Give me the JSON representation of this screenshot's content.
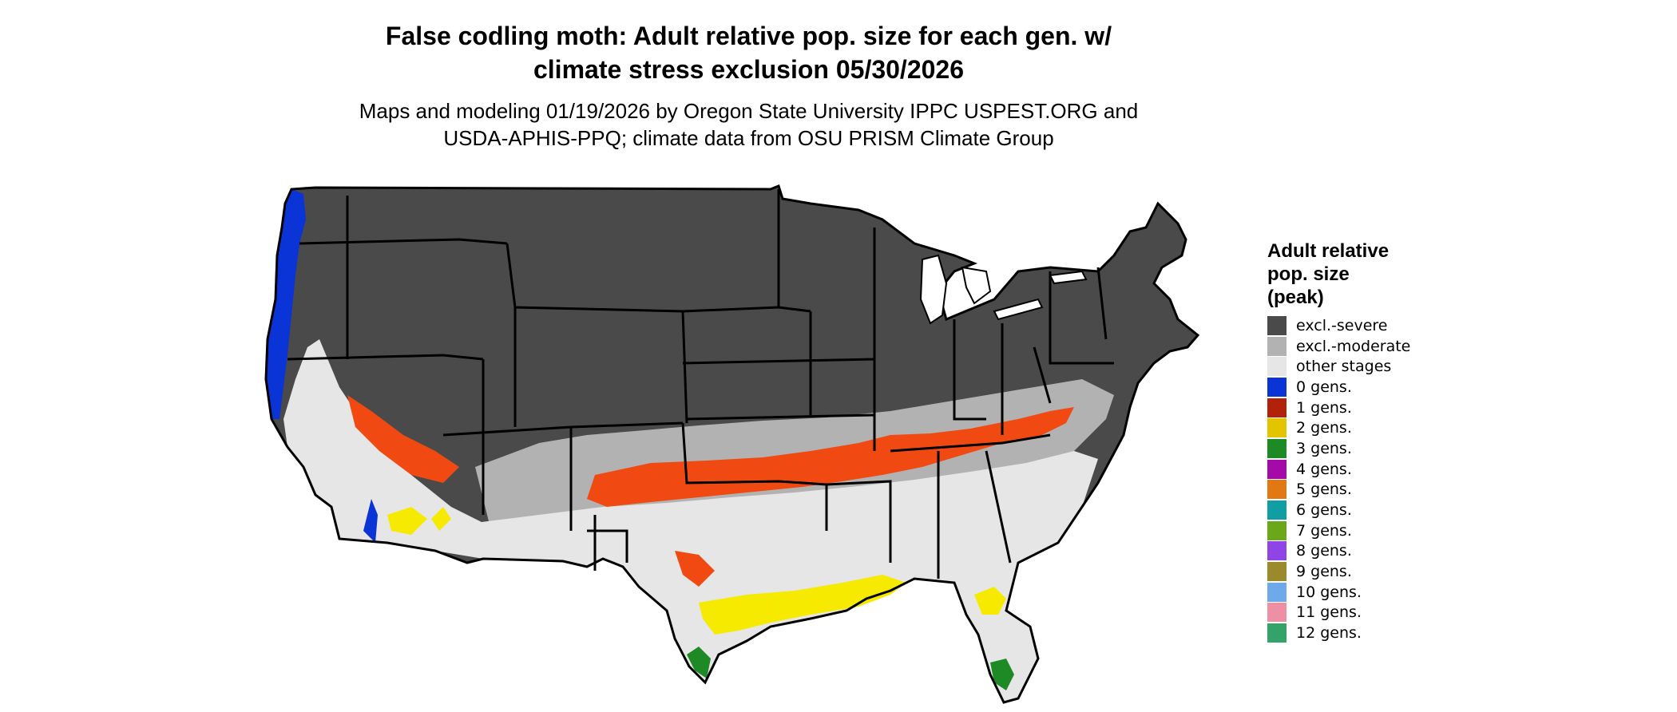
{
  "title_line1": "False codling moth: Adult relative pop. size for each gen. w/",
  "title_line2": "climate stress exclusion 05/30/2026",
  "subtitle_line1": "Maps and modeling 01/19/2026 by Oregon State University IPPC USPEST.ORG and",
  "subtitle_line2": "USDA-APHIS-PPQ; climate data from OSU PRISM Climate Group",
  "legend": {
    "title_line1": "Adult relative",
    "title_line2": "pop. size",
    "title_line3": "(peak)",
    "items": [
      {
        "label": "excl.-severe",
        "color": "#4a4a4a"
      },
      {
        "label": "excl.-moderate",
        "color": "#b2b2b2"
      },
      {
        "label": "other stages",
        "color": "#e6e6e6"
      },
      {
        "label": "0 gens.",
        "color": "#0a34d6"
      },
      {
        "label": "1 gens.",
        "color": "#b2220a"
      },
      {
        "label": "2 gens.",
        "color": "#e3c400"
      },
      {
        "label": "3 gens.",
        "color": "#1e8a25"
      },
      {
        "label": "4 gens.",
        "color": "#a40aa7"
      },
      {
        "label": "5 gens.",
        "color": "#e17812"
      },
      {
        "label": "6 gens.",
        "color": "#109ea2"
      },
      {
        "label": "7 gens.",
        "color": "#6aa81a"
      },
      {
        "label": "8 gens.",
        "color": "#8f45e6"
      },
      {
        "label": "9 gens.",
        "color": "#9a8a2b"
      },
      {
        "label": "10 gens.",
        "color": "#6eaaea"
      },
      {
        "label": "11 gens.",
        "color": "#ed8fa5"
      },
      {
        "label": "12 gens.",
        "color": "#33a36a"
      }
    ]
  },
  "map_colors": {
    "severe": "#4a4a4a",
    "moderate": "#b2b2b2",
    "other": "#e6e6e6",
    "gen0": "#0a34d6",
    "gen1": "#f04a12",
    "gen2": "#f5ea00",
    "gen3": "#1e8a25",
    "border": "#000000"
  }
}
